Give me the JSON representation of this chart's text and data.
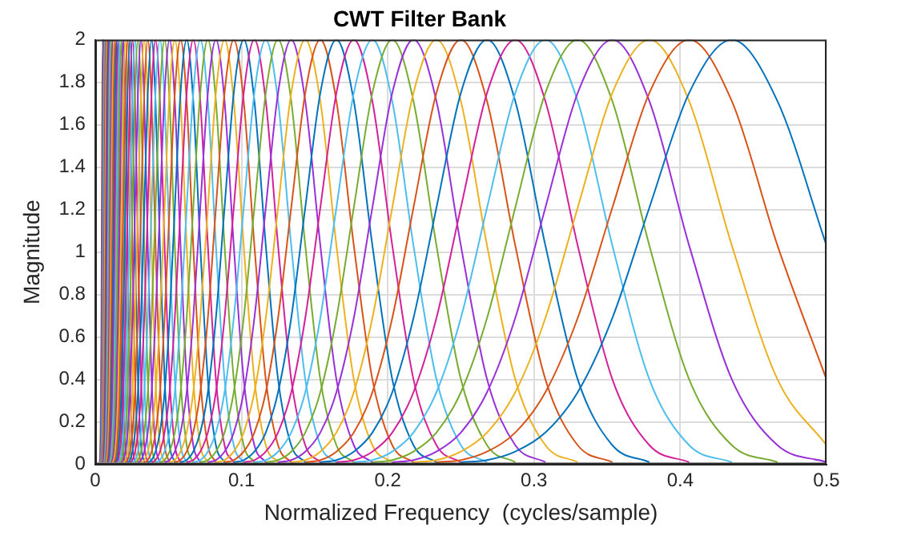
{
  "chart_data": {
    "type": "line",
    "title": "CWT Filter Bank",
    "xlabel": "Normalized Frequency  (cycles/sample)",
    "ylabel": "Magnitude",
    "xlim": [
      0,
      0.5
    ],
    "ylim": [
      0,
      2
    ],
    "xticks": [
      0,
      0.1,
      0.2,
      0.3,
      0.4,
      0.5
    ],
    "yticks": [
      0,
      0.2,
      0.4,
      0.6,
      0.8,
      1,
      1.2,
      1.4,
      1.6,
      1.8,
      2
    ],
    "grid": true,
    "marker": "none",
    "line_style": "solid",
    "series": [
      {
        "color": "#0072bd",
        "x": [
          0.25,
          0.2679,
          0.2872,
          0.3078,
          0.3299,
          0.3536,
          0.3789,
          0.4061,
          0.4353,
          0.4665,
          0.5
        ],
        "values": [
          0.01,
          0.02,
          0.06,
          0.15,
          0.34,
          0.69,
          1.21,
          1.75,
          2,
          1.71,
          1.03
        ]
      },
      {
        "color": "#d95319",
        "x": [
          0.2333,
          0.25,
          0.2679,
          0.2872,
          0.3078,
          0.3299,
          0.3536,
          0.3789,
          0.4061,
          0.4353,
          0.4665,
          0.5
        ],
        "values": [
          0.01,
          0.02,
          0.06,
          0.15,
          0.34,
          0.69,
          1.21,
          1.75,
          2,
          1.71,
          1.03,
          0.4
        ]
      },
      {
        "color": "#edb120",
        "x": [
          0.2176,
          0.2333,
          0.25,
          0.2679,
          0.2872,
          0.3078,
          0.3299,
          0.3536,
          0.3789,
          0.4061,
          0.4353,
          0.4665,
          0.5
        ],
        "values": [
          0.01,
          0.02,
          0.06,
          0.15,
          0.34,
          0.69,
          1.21,
          1.75,
          2,
          1.71,
          1.03,
          0.4,
          0.09
        ]
      },
      {
        "color": "#9a30d8",
        "x": [
          0.2031,
          0.2176,
          0.2333,
          0.25,
          0.2679,
          0.2872,
          0.3078,
          0.3299,
          0.3536,
          0.3789,
          0.4061,
          0.4353,
          0.4665,
          0.5
        ],
        "values": [
          0.01,
          0.02,
          0.06,
          0.15,
          0.34,
          0.69,
          1.21,
          1.75,
          2,
          1.71,
          1.03,
          0.4,
          0.09,
          0.01
        ]
      },
      {
        "color": "#77ac30",
        "x": [
          0.1895,
          0.2031,
          0.2176,
          0.2333,
          0.25,
          0.2679,
          0.2872,
          0.3078,
          0.3299,
          0.3536,
          0.3789,
          0.4061,
          0.4353,
          0.4665
        ],
        "values": [
          0.01,
          0.02,
          0.06,
          0.15,
          0.34,
          0.69,
          1.21,
          1.75,
          2,
          1.71,
          1.03,
          0.4,
          0.09,
          0.01
        ]
      },
      {
        "color": "#4dbeee",
        "x": [
          0.1768,
          0.1895,
          0.2031,
          0.2176,
          0.2333,
          0.25,
          0.2679,
          0.2872,
          0.3078,
          0.3299,
          0.3536,
          0.3789,
          0.4061,
          0.4353
        ],
        "values": [
          0.01,
          0.02,
          0.06,
          0.15,
          0.34,
          0.69,
          1.21,
          1.75,
          2,
          1.71,
          1.03,
          0.4,
          0.09,
          0.01
        ]
      },
      {
        "color": "#d4209a",
        "x": [
          0.1649,
          0.1768,
          0.1895,
          0.2031,
          0.2176,
          0.2333,
          0.25,
          0.2679,
          0.2872,
          0.3078,
          0.3299,
          0.3536,
          0.3789,
          0.4061
        ],
        "values": [
          0.01,
          0.02,
          0.06,
          0.15,
          0.34,
          0.69,
          1.21,
          1.75,
          2,
          1.71,
          1.03,
          0.4,
          0.09,
          0.01
        ]
      },
      {
        "color": "#0072bd",
        "x": [
          0.1539,
          0.1649,
          0.1768,
          0.1895,
          0.2031,
          0.2176,
          0.2333,
          0.25,
          0.2679,
          0.2872,
          0.3078,
          0.3299,
          0.3536,
          0.3789
        ],
        "values": [
          0.01,
          0.02,
          0.06,
          0.15,
          0.34,
          0.69,
          1.21,
          1.75,
          2,
          1.71,
          1.03,
          0.4,
          0.09,
          0.01
        ]
      },
      {
        "color": "#d95319",
        "x": [
          0.1436,
          0.1539,
          0.1649,
          0.1768,
          0.1895,
          0.2031,
          0.2176,
          0.2333,
          0.25,
          0.2679,
          0.2872,
          0.3078,
          0.3299,
          0.3536
        ],
        "values": [
          0.01,
          0.02,
          0.06,
          0.15,
          0.34,
          0.69,
          1.21,
          1.75,
          2,
          1.71,
          1.03,
          0.4,
          0.09,
          0.01
        ]
      },
      {
        "color": "#edb120",
        "x": [
          0.134,
          0.1436,
          0.1539,
          0.1649,
          0.1768,
          0.1895,
          0.2031,
          0.2176,
          0.2333,
          0.25,
          0.2679,
          0.2872,
          0.3078,
          0.3299
        ],
        "values": [
          0.01,
          0.02,
          0.06,
          0.15,
          0.34,
          0.69,
          1.21,
          1.75,
          2,
          1.71,
          1.03,
          0.4,
          0.09,
          0.01
        ]
      },
      {
        "color": "#9a30d8",
        "x": [
          0.125,
          0.134,
          0.1436,
          0.1539,
          0.1649,
          0.1768,
          0.1895,
          0.2031,
          0.2176,
          0.2333,
          0.25,
          0.2679,
          0.2872,
          0.3078
        ],
        "values": [
          0.01,
          0.02,
          0.06,
          0.15,
          0.34,
          0.69,
          1.21,
          1.75,
          2,
          1.71,
          1.03,
          0.4,
          0.09,
          0.01
        ]
      },
      {
        "color": "#77ac30",
        "x": [
          0.1166,
          0.125,
          0.134,
          0.1436,
          0.1539,
          0.1649,
          0.1768,
          0.1895,
          0.2031,
          0.2176,
          0.2333,
          0.25,
          0.2679,
          0.2872
        ],
        "values": [
          0.01,
          0.02,
          0.06,
          0.15,
          0.34,
          0.69,
          1.21,
          1.75,
          2,
          1.71,
          1.03,
          0.4,
          0.09,
          0.01
        ]
      },
      {
        "color": "#4dbeee",
        "x": [
          0.1088,
          0.1166,
          0.125,
          0.134,
          0.1436,
          0.1539,
          0.1649,
          0.1768,
          0.1895,
          0.2031,
          0.2176,
          0.2333,
          0.25,
          0.2679
        ],
        "values": [
          0.01,
          0.02,
          0.06,
          0.15,
          0.34,
          0.69,
          1.21,
          1.75,
          2,
          1.71,
          1.03,
          0.4,
          0.09,
          0.01
        ]
      },
      {
        "color": "#d4209a",
        "x": [
          0.1015,
          0.1088,
          0.1166,
          0.125,
          0.134,
          0.1436,
          0.1539,
          0.1649,
          0.1768,
          0.1895,
          0.2031,
          0.2176,
          0.2333,
          0.25
        ],
        "values": [
          0.01,
          0.02,
          0.06,
          0.15,
          0.34,
          0.69,
          1.21,
          1.75,
          2,
          1.71,
          1.03,
          0.4,
          0.09,
          0.01
        ]
      },
      {
        "color": "#0072bd",
        "x": [
          0.0947,
          0.1015,
          0.1088,
          0.1166,
          0.125,
          0.134,
          0.1436,
          0.1539,
          0.1649,
          0.1768,
          0.1895,
          0.2031,
          0.2176,
          0.2333
        ],
        "values": [
          0.01,
          0.02,
          0.06,
          0.15,
          0.34,
          0.69,
          1.21,
          1.75,
          2,
          1.71,
          1.03,
          0.4,
          0.09,
          0.01
        ]
      },
      {
        "color": "#d95319",
        "x": [
          0.0884,
          0.0947,
          0.1015,
          0.1088,
          0.1166,
          0.125,
          0.134,
          0.1436,
          0.1539,
          0.1649,
          0.1768,
          0.1895,
          0.2031,
          0.2176
        ],
        "values": [
          0.01,
          0.02,
          0.06,
          0.15,
          0.34,
          0.69,
          1.21,
          1.75,
          2,
          1.71,
          1.03,
          0.4,
          0.09,
          0.01
        ]
      },
      {
        "color": "#edb120",
        "x": [
          0.0825,
          0.0884,
          0.0947,
          0.1015,
          0.1088,
          0.1166,
          0.125,
          0.134,
          0.1436,
          0.1539,
          0.1649,
          0.1768,
          0.1895,
          0.2031
        ],
        "values": [
          0.01,
          0.02,
          0.06,
          0.15,
          0.34,
          0.69,
          1.21,
          1.75,
          2,
          1.71,
          1.03,
          0.4,
          0.09,
          0.01
        ]
      },
      {
        "color": "#9a30d8",
        "x": [
          0.077,
          0.0825,
          0.0884,
          0.0947,
          0.1015,
          0.1088,
          0.1166,
          0.125,
          0.134,
          0.1436,
          0.1539,
          0.1649,
          0.1768,
          0.1895
        ],
        "values": [
          0.01,
          0.02,
          0.06,
          0.15,
          0.34,
          0.69,
          1.21,
          1.75,
          2,
          1.71,
          1.03,
          0.4,
          0.09,
          0.01
        ]
      },
      {
        "color": "#77ac30",
        "x": [
          0.0718,
          0.077,
          0.0825,
          0.0884,
          0.0947,
          0.1015,
          0.1088,
          0.1166,
          0.125,
          0.134,
          0.1436,
          0.1539,
          0.1649,
          0.1768
        ],
        "values": [
          0.01,
          0.02,
          0.06,
          0.15,
          0.34,
          0.69,
          1.21,
          1.75,
          2,
          1.71,
          1.03,
          0.4,
          0.09,
          0.01
        ]
      },
      {
        "color": "#4dbeee",
        "x": [
          0.067,
          0.0718,
          0.077,
          0.0825,
          0.0884,
          0.0947,
          0.1015,
          0.1088,
          0.1166,
          0.125,
          0.134,
          0.1436,
          0.1539,
          0.1649
        ],
        "values": [
          0.01,
          0.02,
          0.06,
          0.15,
          0.34,
          0.69,
          1.21,
          1.75,
          2,
          1.71,
          1.03,
          0.4,
          0.09,
          0.01
        ]
      },
      {
        "color": "#d4209a",
        "x": [
          0.0625,
          0.067,
          0.0718,
          0.077,
          0.0825,
          0.0884,
          0.0947,
          0.1015,
          0.1088,
          0.1166,
          0.125,
          0.134,
          0.1436,
          0.1539
        ],
        "values": [
          0.01,
          0.02,
          0.06,
          0.15,
          0.34,
          0.69,
          1.21,
          1.75,
          2,
          1.71,
          1.03,
          0.4,
          0.09,
          0.01
        ]
      },
      {
        "color": "#0072bd",
        "x": [
          0.0583,
          0.0625,
          0.067,
          0.0718,
          0.077,
          0.0825,
          0.0884,
          0.0947,
          0.1015,
          0.1088,
          0.1166,
          0.125,
          0.134,
          0.1436
        ],
        "values": [
          0.01,
          0.02,
          0.06,
          0.15,
          0.34,
          0.69,
          1.21,
          1.75,
          2,
          1.71,
          1.03,
          0.4,
          0.09,
          0.01
        ]
      },
      {
        "color": "#d95319",
        "x": [
          0.0544,
          0.0583,
          0.0625,
          0.067,
          0.0718,
          0.077,
          0.0825,
          0.0884,
          0.0947,
          0.1015,
          0.1088,
          0.1166,
          0.125,
          0.134
        ],
        "values": [
          0.01,
          0.02,
          0.06,
          0.15,
          0.34,
          0.69,
          1.21,
          1.75,
          2,
          1.71,
          1.03,
          0.4,
          0.09,
          0.01
        ]
      },
      {
        "color": "#edb120",
        "x": [
          0.0508,
          0.0544,
          0.0583,
          0.0625,
          0.067,
          0.0718,
          0.077,
          0.0825,
          0.0884,
          0.0947,
          0.1015,
          0.1088,
          0.1166,
          0.125
        ],
        "values": [
          0.01,
          0.02,
          0.06,
          0.15,
          0.34,
          0.69,
          1.21,
          1.75,
          2,
          1.71,
          1.03,
          0.4,
          0.09,
          0.01
        ]
      },
      {
        "color": "#9a30d8",
        "x": [
          0.0474,
          0.0508,
          0.0544,
          0.0583,
          0.0625,
          0.067,
          0.0718,
          0.077,
          0.0825,
          0.0884,
          0.0947,
          0.1015,
          0.1088,
          0.1166
        ],
        "values": [
          0.01,
          0.02,
          0.06,
          0.15,
          0.34,
          0.69,
          1.21,
          1.75,
          2,
          1.71,
          1.03,
          0.4,
          0.09,
          0.01
        ]
      },
      {
        "color": "#77ac30",
        "x": [
          0.0442,
          0.0474,
          0.0508,
          0.0544,
          0.0583,
          0.0625,
          0.067,
          0.0718,
          0.077,
          0.0825,
          0.0884,
          0.0947,
          0.1015,
          0.1088
        ],
        "values": [
          0.01,
          0.02,
          0.06,
          0.15,
          0.34,
          0.69,
          1.21,
          1.75,
          2,
          1.71,
          1.03,
          0.4,
          0.09,
          0.01
        ]
      },
      {
        "color": "#4dbeee",
        "x": [
          0.0412,
          0.0442,
          0.0474,
          0.0508,
          0.0544,
          0.0583,
          0.0625,
          0.067,
          0.0718,
          0.077,
          0.0825,
          0.0884,
          0.0947,
          0.1015
        ],
        "values": [
          0.01,
          0.02,
          0.06,
          0.15,
          0.34,
          0.69,
          1.21,
          1.75,
          2,
          1.71,
          1.03,
          0.4,
          0.09,
          0.01
        ]
      },
      {
        "color": "#d4209a",
        "x": [
          0.0385,
          0.0412,
          0.0442,
          0.0474,
          0.0508,
          0.0544,
          0.0583,
          0.0625,
          0.067,
          0.0718,
          0.077,
          0.0825,
          0.0884,
          0.0947
        ],
        "values": [
          0.01,
          0.02,
          0.06,
          0.15,
          0.34,
          0.69,
          1.21,
          1.75,
          2,
          1.71,
          1.03,
          0.4,
          0.09,
          0.01
        ]
      },
      {
        "color": "#0072bd",
        "x": [
          0.0359,
          0.0385,
          0.0412,
          0.0442,
          0.0474,
          0.0508,
          0.0544,
          0.0583,
          0.0625,
          0.067,
          0.0718,
          0.077,
          0.0825,
          0.0884
        ],
        "values": [
          0.01,
          0.02,
          0.06,
          0.15,
          0.34,
          0.69,
          1.21,
          1.75,
          2,
          1.71,
          1.03,
          0.4,
          0.09,
          0.01
        ]
      },
      {
        "color": "#d95319",
        "x": [
          0.0335,
          0.0359,
          0.0385,
          0.0412,
          0.0442,
          0.0474,
          0.0508,
          0.0544,
          0.0583,
          0.0625,
          0.067,
          0.0718,
          0.077,
          0.0825
        ],
        "values": [
          0.01,
          0.02,
          0.06,
          0.15,
          0.34,
          0.69,
          1.21,
          1.75,
          2,
          1.71,
          1.03,
          0.4,
          0.09,
          0.01
        ]
      },
      {
        "color": "#edb120",
        "x": [
          0.0313,
          0.0335,
          0.0359,
          0.0385,
          0.0412,
          0.0442,
          0.0474,
          0.0508,
          0.0544,
          0.0583,
          0.0625,
          0.067,
          0.0718,
          0.077
        ],
        "values": [
          0.01,
          0.02,
          0.06,
          0.15,
          0.34,
          0.69,
          1.21,
          1.75,
          2,
          1.71,
          1.03,
          0.4,
          0.09,
          0.01
        ]
      },
      {
        "color": "#9a30d8",
        "x": [
          0.0292,
          0.0313,
          0.0335,
          0.0359,
          0.0385,
          0.0412,
          0.0442,
          0.0474,
          0.0508,
          0.0544,
          0.0583,
          0.0625,
          0.067,
          0.0718
        ],
        "values": [
          0.01,
          0.02,
          0.06,
          0.15,
          0.34,
          0.69,
          1.21,
          1.75,
          2,
          1.71,
          1.03,
          0.4,
          0.09,
          0.01
        ]
      },
      {
        "color": "#77ac30",
        "x": [
          0.0272,
          0.0292,
          0.0313,
          0.0335,
          0.0359,
          0.0385,
          0.0412,
          0.0442,
          0.0474,
          0.0508,
          0.0544,
          0.0583,
          0.0625,
          0.067
        ],
        "values": [
          0.01,
          0.02,
          0.06,
          0.15,
          0.34,
          0.69,
          1.21,
          1.75,
          2,
          1.71,
          1.03,
          0.4,
          0.09,
          0.01
        ]
      },
      {
        "color": "#4dbeee",
        "x": [
          0.0254,
          0.0272,
          0.0292,
          0.0313,
          0.0335,
          0.0359,
          0.0385,
          0.0412,
          0.0442,
          0.0474,
          0.0508,
          0.0544,
          0.0583,
          0.0625
        ],
        "values": [
          0.01,
          0.02,
          0.06,
          0.15,
          0.34,
          0.69,
          1.21,
          1.75,
          2,
          1.71,
          1.03,
          0.4,
          0.09,
          0.01
        ]
      },
      {
        "color": "#d4209a",
        "x": [
          0.0237,
          0.0254,
          0.0272,
          0.0292,
          0.0313,
          0.0335,
          0.0359,
          0.0385,
          0.0412,
          0.0442,
          0.0474,
          0.0508,
          0.0544,
          0.0583
        ],
        "values": [
          0.01,
          0.02,
          0.06,
          0.15,
          0.34,
          0.69,
          1.21,
          1.75,
          2,
          1.71,
          1.03,
          0.4,
          0.09,
          0.01
        ]
      },
      {
        "color": "#0072bd",
        "x": [
          0.0221,
          0.0237,
          0.0254,
          0.0272,
          0.0292,
          0.0313,
          0.0335,
          0.0359,
          0.0385,
          0.0412,
          0.0442,
          0.0474,
          0.0508,
          0.0544
        ],
        "values": [
          0.01,
          0.02,
          0.06,
          0.15,
          0.34,
          0.69,
          1.21,
          1.75,
          2,
          1.71,
          1.03,
          0.4,
          0.09,
          0.01
        ]
      },
      {
        "color": "#d95319",
        "x": [
          0.0206,
          0.0221,
          0.0237,
          0.0254,
          0.0272,
          0.0292,
          0.0313,
          0.0335,
          0.0359,
          0.0385,
          0.0412,
          0.0442,
          0.0474,
          0.0508
        ],
        "values": [
          0.01,
          0.02,
          0.06,
          0.15,
          0.34,
          0.69,
          1.21,
          1.75,
          2,
          1.71,
          1.03,
          0.4,
          0.09,
          0.01
        ]
      },
      {
        "color": "#edb120",
        "x": [
          0.0192,
          0.0206,
          0.0221,
          0.0237,
          0.0254,
          0.0272,
          0.0292,
          0.0313,
          0.0335,
          0.0359,
          0.0385,
          0.0412,
          0.0442,
          0.0474
        ],
        "values": [
          0.01,
          0.02,
          0.06,
          0.15,
          0.34,
          0.69,
          1.21,
          1.75,
          2,
          1.71,
          1.03,
          0.4,
          0.09,
          0.01
        ]
      },
      {
        "color": "#9a30d8",
        "x": [
          0.0179,
          0.0192,
          0.0206,
          0.0221,
          0.0237,
          0.0254,
          0.0272,
          0.0292,
          0.0313,
          0.0335,
          0.0359,
          0.0385,
          0.0412,
          0.0442
        ],
        "values": [
          0.01,
          0.02,
          0.06,
          0.15,
          0.34,
          0.69,
          1.21,
          1.75,
          2,
          1.71,
          1.03,
          0.4,
          0.09,
          0.01
        ]
      },
      {
        "color": "#77ac30",
        "x": [
          0.0167,
          0.0179,
          0.0192,
          0.0206,
          0.0221,
          0.0237,
          0.0254,
          0.0272,
          0.0292,
          0.0313,
          0.0335,
          0.0359,
          0.0385,
          0.0412
        ],
        "values": [
          0.01,
          0.02,
          0.06,
          0.15,
          0.34,
          0.69,
          1.21,
          1.75,
          2,
          1.71,
          1.03,
          0.4,
          0.09,
          0.01
        ]
      },
      {
        "color": "#4dbeee",
        "x": [
          0.0156,
          0.0167,
          0.0179,
          0.0192,
          0.0206,
          0.0221,
          0.0237,
          0.0254,
          0.0272,
          0.0292,
          0.0313,
          0.0335,
          0.0359,
          0.0385
        ],
        "values": [
          0.01,
          0.02,
          0.06,
          0.15,
          0.34,
          0.69,
          1.21,
          1.75,
          2,
          1.71,
          1.03,
          0.4,
          0.09,
          0.01
        ]
      },
      {
        "color": "#d4209a",
        "x": [
          0.0146,
          0.0156,
          0.0167,
          0.0179,
          0.0192,
          0.0206,
          0.0221,
          0.0237,
          0.0254,
          0.0272,
          0.0292,
          0.0313,
          0.0335,
          0.0359
        ],
        "values": [
          0.01,
          0.02,
          0.06,
          0.15,
          0.34,
          0.69,
          1.21,
          1.75,
          2,
          1.71,
          1.03,
          0.4,
          0.09,
          0.01
        ]
      },
      {
        "color": "#0072bd",
        "x": [
          0.0136,
          0.0146,
          0.0156,
          0.0167,
          0.0179,
          0.0192,
          0.0206,
          0.0221,
          0.0237,
          0.0254,
          0.0272,
          0.0292,
          0.0313,
          0.0335
        ],
        "values": [
          0.01,
          0.02,
          0.06,
          0.15,
          0.34,
          0.69,
          1.21,
          1.75,
          2,
          1.71,
          1.03,
          0.4,
          0.09,
          0.01
        ]
      },
      {
        "color": "#d95319",
        "x": [
          0.0127,
          0.0136,
          0.0146,
          0.0156,
          0.0167,
          0.0179,
          0.0192,
          0.0206,
          0.0221,
          0.0237,
          0.0254,
          0.0272,
          0.0292,
          0.0313
        ],
        "values": [
          0.01,
          0.02,
          0.06,
          0.15,
          0.34,
          0.69,
          1.21,
          1.75,
          2,
          1.71,
          1.03,
          0.4,
          0.09,
          0.01
        ]
      },
      {
        "color": "#edb120",
        "x": [
          0.0118,
          0.0127,
          0.0136,
          0.0146,
          0.0156,
          0.0167,
          0.0179,
          0.0192,
          0.0206,
          0.0221,
          0.0237,
          0.0254,
          0.0272,
          0.0292
        ],
        "values": [
          0.01,
          0.02,
          0.06,
          0.15,
          0.34,
          0.69,
          1.21,
          1.75,
          2,
          1.71,
          1.03,
          0.4,
          0.09,
          0.01
        ]
      },
      {
        "color": "#9a30d8",
        "x": [
          0.011,
          0.0118,
          0.0127,
          0.0136,
          0.0146,
          0.0156,
          0.0167,
          0.0179,
          0.0192,
          0.0206,
          0.0221,
          0.0237,
          0.0254,
          0.0272
        ],
        "values": [
          0.01,
          0.02,
          0.06,
          0.15,
          0.34,
          0.69,
          1.21,
          1.75,
          2,
          1.71,
          1.03,
          0.4,
          0.09,
          0.01
        ]
      },
      {
        "color": "#77ac30",
        "x": [
          0.0103,
          0.011,
          0.0118,
          0.0127,
          0.0136,
          0.0146,
          0.0156,
          0.0167,
          0.0179,
          0.0192,
          0.0206,
          0.0221,
          0.0237,
          0.0254
        ],
        "values": [
          0.01,
          0.02,
          0.06,
          0.15,
          0.34,
          0.69,
          1.21,
          1.75,
          2,
          1.71,
          1.03,
          0.4,
          0.09,
          0.01
        ]
      },
      {
        "color": "#4dbeee",
        "x": [
          0.0096,
          0.0103,
          0.011,
          0.0118,
          0.0127,
          0.0136,
          0.0146,
          0.0156,
          0.0167,
          0.0179,
          0.0192,
          0.0206,
          0.0221,
          0.0237
        ],
        "values": [
          0.01,
          0.02,
          0.06,
          0.15,
          0.34,
          0.69,
          1.21,
          1.75,
          2,
          1.71,
          1.03,
          0.4,
          0.09,
          0.01
        ]
      },
      {
        "color": "#d4209a",
        "x": [
          0.009,
          0.0096,
          0.0103,
          0.011,
          0.0118,
          0.0127,
          0.0136,
          0.0146,
          0.0156,
          0.0167,
          0.0179,
          0.0192,
          0.0206,
          0.0221
        ],
        "values": [
          0.01,
          0.02,
          0.06,
          0.15,
          0.34,
          0.69,
          1.21,
          1.75,
          2,
          1.71,
          1.03,
          0.4,
          0.09,
          0.01
        ]
      },
      {
        "color": "#0072bd",
        "x": [
          0.0084,
          0.009,
          0.0096,
          0.0103,
          0.011,
          0.0118,
          0.0127,
          0.0136,
          0.0146,
          0.0156,
          0.0167,
          0.0179,
          0.0192,
          0.0206
        ],
        "values": [
          0.01,
          0.02,
          0.06,
          0.15,
          0.34,
          0.69,
          1.21,
          1.75,
          2,
          1.71,
          1.03,
          0.4,
          0.09,
          0.01
        ]
      },
      {
        "color": "#d95319",
        "x": [
          0.0078,
          0.0084,
          0.009,
          0.0096,
          0.0103,
          0.011,
          0.0118,
          0.0127,
          0.0136,
          0.0146,
          0.0156,
          0.0167,
          0.0179,
          0.0192
        ],
        "values": [
          0.01,
          0.02,
          0.06,
          0.15,
          0.34,
          0.69,
          1.21,
          1.75,
          2,
          1.71,
          1.03,
          0.4,
          0.09,
          0.01
        ]
      },
      {
        "color": "#edb120",
        "x": [
          0.0073,
          0.0078,
          0.0084,
          0.009,
          0.0096,
          0.0103,
          0.011,
          0.0118,
          0.0127,
          0.0136,
          0.0146,
          0.0156,
          0.0167,
          0.0179
        ],
        "values": [
          0.01,
          0.02,
          0.06,
          0.15,
          0.34,
          0.69,
          1.21,
          1.75,
          2,
          1.71,
          1.03,
          0.4,
          0.09,
          0.01
        ]
      },
      {
        "color": "#9a30d8",
        "x": [
          0.0068,
          0.0073,
          0.0078,
          0.0084,
          0.009,
          0.0096,
          0.0103,
          0.011,
          0.0118,
          0.0127,
          0.0136,
          0.0146,
          0.0156,
          0.0167
        ],
        "values": [
          0.01,
          0.02,
          0.06,
          0.15,
          0.34,
          0.69,
          1.21,
          1.75,
          2,
          1.71,
          1.03,
          0.4,
          0.09,
          0.01
        ]
      },
      {
        "color": "#77ac30",
        "x": [
          0.0063,
          0.0068,
          0.0073,
          0.0078,
          0.0084,
          0.009,
          0.0096,
          0.0103,
          0.011,
          0.0118,
          0.0127,
          0.0136,
          0.0146,
          0.0156
        ],
        "values": [
          0.01,
          0.02,
          0.06,
          0.15,
          0.34,
          0.69,
          1.21,
          1.75,
          2,
          1.71,
          1.03,
          0.4,
          0.09,
          0.01
        ]
      },
      {
        "color": "#4dbeee",
        "x": [
          0.0059,
          0.0063,
          0.0068,
          0.0073,
          0.0078,
          0.0084,
          0.009,
          0.0096,
          0.0103,
          0.011,
          0.0118,
          0.0127,
          0.0136,
          0.0146
        ],
        "values": [
          0.01,
          0.02,
          0.06,
          0.15,
          0.34,
          0.69,
          1.21,
          1.75,
          2,
          1.71,
          1.03,
          0.4,
          0.09,
          0.01
        ]
      },
      {
        "color": "#d4209a",
        "x": [
          0.0055,
          0.0059,
          0.0063,
          0.0068,
          0.0073,
          0.0078,
          0.0084,
          0.009,
          0.0096,
          0.0103,
          0.011,
          0.0118,
          0.0127,
          0.0136
        ],
        "values": [
          0.01,
          0.02,
          0.06,
          0.15,
          0.34,
          0.69,
          1.21,
          1.75,
          2,
          1.71,
          1.03,
          0.4,
          0.09,
          0.01
        ]
      },
      {
        "color": "#0072bd",
        "x": [
          0.0052,
          0.0055,
          0.0059,
          0.0063,
          0.0068,
          0.0073,
          0.0078,
          0.0084,
          0.009,
          0.0096,
          0.0103,
          0.011,
          0.0118,
          0.0127
        ],
        "values": [
          0.01,
          0.02,
          0.06,
          0.15,
          0.34,
          0.69,
          1.21,
          1.75,
          2,
          1.71,
          1.03,
          0.4,
          0.09,
          0.01
        ]
      },
      {
        "color": "#d95319",
        "x": [
          0.0048,
          0.0052,
          0.0055,
          0.0059,
          0.0063,
          0.0068,
          0.0073,
          0.0078,
          0.0084,
          0.009,
          0.0096,
          0.0103,
          0.011,
          0.0118
        ],
        "values": [
          0.01,
          0.02,
          0.06,
          0.15,
          0.34,
          0.69,
          1.21,
          1.75,
          2,
          1.71,
          1.03,
          0.4,
          0.09,
          0.01
        ]
      },
      {
        "color": "#edb120",
        "x": [
          0.0045,
          0.0048,
          0.0052,
          0.0055,
          0.0059,
          0.0063,
          0.0068,
          0.0073,
          0.0078,
          0.0084,
          0.009,
          0.0096,
          0.0103,
          0.011
        ],
        "values": [
          0.01,
          0.02,
          0.06,
          0.15,
          0.34,
          0.69,
          1.21,
          1.75,
          2,
          1.71,
          1.03,
          0.4,
          0.09,
          0.01
        ]
      },
      {
        "color": "#9a30d8",
        "x": [
          0.0042,
          0.0045,
          0.0048,
          0.0052,
          0.0055,
          0.0059,
          0.0063,
          0.0068,
          0.0073,
          0.0078,
          0.0084,
          0.009,
          0.0096,
          0.0103
        ],
        "values": [
          0.01,
          0.02,
          0.06,
          0.15,
          0.34,
          0.69,
          1.21,
          1.75,
          2,
          1.71,
          1.03,
          0.4,
          0.09,
          0.01
        ]
      },
      {
        "color": "#77ac30",
        "x": [
          0.0039,
          0.0042,
          0.0045,
          0.0048,
          0.0052,
          0.0055,
          0.0059,
          0.0063,
          0.0068,
          0.0073,
          0.0078,
          0.0084,
          0.009,
          0.0096
        ],
        "values": [
          0.01,
          0.02,
          0.06,
          0.15,
          0.34,
          0.69,
          1.21,
          1.75,
          2,
          1.71,
          1.03,
          0.4,
          0.09,
          0.01
        ]
      },
      {
        "color": "#4dbeee",
        "x": [
          0.0036,
          0.0039,
          0.0042,
          0.0045,
          0.0048,
          0.0052,
          0.0055,
          0.0059,
          0.0063,
          0.0068,
          0.0073,
          0.0078,
          0.0084,
          0.009
        ],
        "values": [
          0.01,
          0.02,
          0.06,
          0.15,
          0.34,
          0.69,
          1.21,
          1.75,
          2,
          1.71,
          1.03,
          0.4,
          0.09,
          0.01
        ]
      },
      {
        "color": "#d4209a",
        "x": [
          0.0034,
          0.0036,
          0.0039,
          0.0042,
          0.0045,
          0.0048,
          0.0052,
          0.0055,
          0.0059,
          0.0063,
          0.0068,
          0.0073,
          0.0078,
          0.0084
        ],
        "values": [
          0.01,
          0.02,
          0.06,
          0.15,
          0.34,
          0.69,
          1.21,
          1.75,
          2,
          1.71,
          1.03,
          0.4,
          0.09,
          0.01
        ]
      },
      {
        "color": "#0072bd",
        "x": [
          0.0032,
          0.0034,
          0.0036,
          0.0039,
          0.0042,
          0.0045,
          0.0048,
          0.0052,
          0.0055,
          0.0059,
          0.0063,
          0.0068,
          0.0073,
          0.0078
        ],
        "values": [
          0.01,
          0.02,
          0.06,
          0.15,
          0.34,
          0.69,
          1.21,
          1.75,
          2,
          1.71,
          1.03,
          0.4,
          0.09,
          0.01
        ]
      },
      {
        "color": "#d95319",
        "x": [
          0.003,
          0.0032,
          0.0034,
          0.0036,
          0.0039,
          0.0042,
          0.0045,
          0.0048,
          0.0052,
          0.0055,
          0.0059,
          0.0063,
          0.0068,
          0.0073
        ],
        "values": [
          0.01,
          0.02,
          0.06,
          0.15,
          0.34,
          0.69,
          1.21,
          1.75,
          2,
          1.71,
          1.03,
          0.4,
          0.09,
          0.01
        ]
      }
    ]
  }
}
